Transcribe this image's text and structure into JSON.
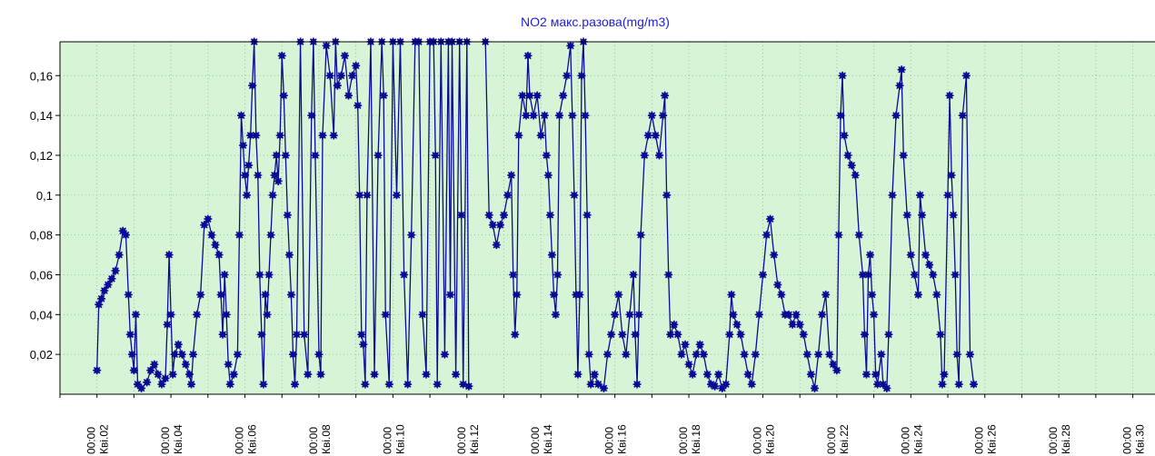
{
  "chart_data": {
    "type": "line",
    "title": "NO2 макс.разова(mg/m3)",
    "xlabel": "",
    "ylabel": "",
    "ylim": [
      0,
      0.177
    ],
    "xlim": [
      1,
      30.6
    ],
    "y_ticks": [
      "0,02",
      "0,04",
      "0,06",
      "0,08",
      "0,1",
      "0,12",
      "0,14",
      "0,16"
    ],
    "x_ticks": [
      {
        "time": "00:00",
        "date": "Кві.02"
      },
      {
        "time": "00:00",
        "date": "Кві.04"
      },
      {
        "time": "00:00",
        "date": "Кві.06"
      },
      {
        "time": "00:00",
        "date": "Кві.08"
      },
      {
        "time": "00:00",
        "date": "Кві.10"
      },
      {
        "time": "00:00",
        "date": "Кві.12"
      },
      {
        "time": "00:00",
        "date": "Кві.14"
      },
      {
        "time": "00:00",
        "date": "Кві.16"
      },
      {
        "time": "00:00",
        "date": "Кві.18"
      },
      {
        "time": "00:00",
        "date": "Кві.20"
      },
      {
        "time": "00:00",
        "date": "Кві.22"
      },
      {
        "time": "00:00",
        "date": "Кві.24"
      },
      {
        "time": "00:00",
        "date": "Кві.26"
      },
      {
        "time": "00:00",
        "date": "Кві.28"
      },
      {
        "time": "00:00",
        "date": "Кві.30"
      }
    ],
    "grid": true,
    "colors": {
      "line": "#0a0a96",
      "plot_background": "#d6f5d6",
      "title": "#2020d8"
    },
    "series": [
      {
        "name": "",
        "points": [
          [
            2.0,
            0.012
          ],
          [
            2.05,
            0.045
          ],
          [
            2.12,
            0.048
          ],
          [
            2.2,
            0.052
          ],
          [
            2.3,
            0.055
          ],
          [
            2.4,
            0.058
          ],
          [
            2.5,
            0.062
          ],
          [
            2.6,
            0.07
          ],
          [
            2.7,
            0.082
          ],
          [
            2.78,
            0.08
          ],
          [
            2.85,
            0.05
          ],
          [
            2.9,
            0.03
          ],
          [
            2.95,
            0.02
          ],
          [
            3.0,
            0.012
          ],
          [
            3.05,
            0.04
          ],
          [
            3.1,
            0.005
          ],
          [
            3.2,
            0.003
          ],
          [
            3.35,
            0.006
          ],
          [
            3.45,
            0.012
          ],
          [
            3.55,
            0.015
          ],
          [
            3.65,
            0.01
          ],
          [
            3.75,
            0.005
          ],
          [
            3.85,
            0.008
          ],
          [
            3.9,
            0.035
          ],
          [
            3.95,
            0.07
          ],
          [
            4.0,
            0.04
          ],
          [
            4.05,
            0.01
          ],
          [
            4.1,
            0.02
          ],
          [
            4.2,
            0.025
          ],
          [
            4.3,
            0.02
          ],
          [
            4.4,
            0.015
          ],
          [
            4.5,
            0.01
          ],
          [
            4.55,
            0.005
          ],
          [
            4.6,
            0.02
          ],
          [
            4.7,
            0.04
          ],
          [
            4.8,
            0.05
          ],
          [
            4.9,
            0.085
          ],
          [
            5.0,
            0.088
          ],
          [
            5.1,
            0.08
          ],
          [
            5.2,
            0.075
          ],
          [
            5.3,
            0.07
          ],
          [
            5.35,
            0.05
          ],
          [
            5.4,
            0.03
          ],
          [
            5.45,
            0.06
          ],
          [
            5.5,
            0.04
          ],
          [
            5.55,
            0.015
          ],
          [
            5.6,
            0.005
          ],
          [
            5.7,
            0.01
          ],
          [
            5.8,
            0.02
          ],
          [
            5.85,
            0.08
          ],
          [
            5.9,
            0.14
          ],
          [
            5.95,
            0.125
          ],
          [
            6.0,
            0.11
          ],
          [
            6.05,
            0.1
          ],
          [
            6.1,
            0.115
          ],
          [
            6.15,
            0.13
          ],
          [
            6.2,
            0.155
          ],
          [
            6.25,
            0.177
          ],
          [
            6.3,
            0.13
          ],
          [
            6.35,
            0.11
          ],
          [
            6.4,
            0.06
          ],
          [
            6.45,
            0.03
          ],
          [
            6.5,
            0.005
          ],
          [
            6.55,
            0.05
          ],
          [
            6.6,
            0.04
          ],
          [
            6.65,
            0.06
          ],
          [
            6.7,
            0.08
          ],
          [
            6.75,
            0.1
          ],
          [
            6.8,
            0.11
          ],
          [
            6.85,
            0.12
          ],
          [
            6.9,
            0.107
          ],
          [
            6.95,
            0.13
          ],
          [
            7.0,
            0.17
          ],
          [
            7.05,
            0.15
          ],
          [
            7.1,
            0.12
          ],
          [
            7.15,
            0.09
          ],
          [
            7.2,
            0.07
          ],
          [
            7.25,
            0.05
          ],
          [
            7.3,
            0.02
          ],
          [
            7.35,
            0.005
          ],
          [
            7.4,
            0.03
          ],
          [
            7.5,
            0.177
          ],
          [
            7.6,
            0.03
          ],
          [
            7.7,
            0.01
          ],
          [
            7.8,
            0.14
          ],
          [
            7.85,
            0.177
          ],
          [
            7.9,
            0.12
          ],
          [
            8.0,
            0.02
          ],
          [
            8.05,
            0.01
          ],
          [
            8.1,
            0.13
          ],
          [
            8.2,
            0.175
          ],
          [
            8.3,
            0.16
          ],
          [
            8.4,
            0.13
          ],
          [
            8.45,
            0.177
          ],
          [
            8.5,
            0.155
          ],
          [
            8.6,
            0.16
          ],
          [
            8.7,
            0.17
          ],
          [
            8.8,
            0.15
          ],
          [
            8.9,
            0.16
          ],
          [
            9.0,
            0.165
          ],
          [
            9.05,
            0.145
          ],
          [
            9.1,
            0.1
          ],
          [
            9.15,
            0.03
          ],
          [
            9.2,
            0.025
          ],
          [
            9.25,
            0.005
          ],
          [
            9.3,
            0.1
          ],
          [
            9.4,
            0.177
          ],
          [
            9.5,
            0.01
          ],
          [
            9.6,
            0.12
          ],
          [
            9.7,
            0.177
          ],
          [
            9.75,
            0.15
          ],
          [
            9.8,
            0.04
          ],
          [
            9.9,
            0.005
          ],
          [
            10.0,
            0.177
          ],
          [
            10.1,
            0.1
          ],
          [
            10.2,
            0.177
          ],
          [
            10.3,
            0.06
          ],
          [
            10.4,
            0.005
          ],
          [
            10.5,
            0.08
          ],
          [
            10.6,
            0.177
          ],
          [
            10.7,
            0.177
          ],
          [
            10.8,
            0.04
          ],
          [
            10.9,
            0.01
          ],
          [
            11.0,
            0.177
          ],
          [
            11.1,
            0.177
          ],
          [
            11.15,
            0.12
          ],
          [
            11.2,
            0.005
          ],
          [
            11.3,
            0.177
          ],
          [
            11.4,
            0.02
          ],
          [
            11.5,
            0.177
          ],
          [
            11.55,
            0.05
          ],
          [
            11.6,
            0.177
          ],
          [
            11.7,
            0.01
          ],
          [
            11.8,
            0.177
          ],
          [
            11.85,
            0.09
          ],
          [
            11.9,
            0.005
          ],
          [
            12.0,
            0.177
          ],
          [
            12.05,
            0.004
          ],
          [
            12.5,
            0.18
          ],
          [
            12.6,
            0.09
          ],
          [
            12.7,
            0.085
          ],
          [
            12.8,
            0.075
          ],
          [
            12.9,
            0.085
          ],
          [
            13.0,
            0.09
          ],
          [
            13.1,
            0.1
          ],
          [
            13.2,
            0.11
          ],
          [
            13.25,
            0.06
          ],
          [
            13.3,
            0.03
          ],
          [
            13.35,
            0.05
          ],
          [
            13.4,
            0.13
          ],
          [
            13.5,
            0.15
          ],
          [
            13.6,
            0.14
          ],
          [
            13.65,
            0.17
          ],
          [
            13.7,
            0.15
          ],
          [
            13.8,
            0.14
          ],
          [
            13.9,
            0.15
          ],
          [
            14.0,
            0.13
          ],
          [
            14.1,
            0.14
          ],
          [
            14.15,
            0.12
          ],
          [
            14.2,
            0.11
          ],
          [
            14.25,
            0.09
          ],
          [
            14.3,
            0.07
          ],
          [
            14.35,
            0.05
          ],
          [
            14.4,
            0.04
          ],
          [
            14.45,
            0.06
          ],
          [
            14.5,
            0.14
          ],
          [
            14.6,
            0.15
          ],
          [
            14.7,
            0.16
          ],
          [
            14.8,
            0.175
          ],
          [
            14.85,
            0.14
          ],
          [
            14.9,
            0.1
          ],
          [
            14.95,
            0.05
          ],
          [
            15.0,
            0.01
          ],
          [
            15.05,
            0.05
          ],
          [
            15.1,
            0.16
          ],
          [
            15.15,
            0.177
          ],
          [
            15.2,
            0.14
          ],
          [
            15.25,
            0.09
          ],
          [
            15.3,
            0.02
          ],
          [
            15.35,
            0.005
          ],
          [
            15.45,
            0.01
          ],
          [
            15.55,
            0.005
          ],
          [
            15.7,
            0.003
          ],
          [
            15.8,
            0.02
          ],
          [
            15.9,
            0.03
          ],
          [
            16.0,
            0.04
          ],
          [
            16.1,
            0.05
          ],
          [
            16.2,
            0.03
          ],
          [
            16.3,
            0.02
          ],
          [
            16.4,
            0.04
          ],
          [
            16.5,
            0.06
          ],
          [
            16.55,
            0.03
          ],
          [
            16.6,
            0.005
          ],
          [
            16.65,
            0.04
          ],
          [
            16.7,
            0.08
          ],
          [
            16.8,
            0.12
          ],
          [
            16.9,
            0.13
          ],
          [
            17.0,
            0.14
          ],
          [
            17.1,
            0.13
          ],
          [
            17.2,
            0.12
          ],
          [
            17.3,
            0.14
          ],
          [
            17.35,
            0.15
          ],
          [
            17.4,
            0.1
          ],
          [
            17.45,
            0.06
          ],
          [
            17.5,
            0.03
          ],
          [
            17.6,
            0.035
          ],
          [
            17.7,
            0.03
          ],
          [
            17.8,
            0.02
          ],
          [
            17.9,
            0.025
          ],
          [
            18.0,
            0.015
          ],
          [
            18.1,
            0.01
          ],
          [
            18.2,
            0.02
          ],
          [
            18.3,
            0.025
          ],
          [
            18.4,
            0.02
          ],
          [
            18.5,
            0.01
          ],
          [
            18.6,
            0.005
          ],
          [
            18.7,
            0.004
          ],
          [
            18.8,
            0.01
          ],
          [
            18.9,
            0.003
          ],
          [
            19.0,
            0.005
          ],
          [
            19.1,
            0.03
          ],
          [
            19.15,
            0.05
          ],
          [
            19.2,
            0.04
          ],
          [
            19.3,
            0.035
          ],
          [
            19.4,
            0.03
          ],
          [
            19.5,
            0.02
          ],
          [
            19.6,
            0.01
          ],
          [
            19.7,
            0.005
          ],
          [
            19.8,
            0.02
          ],
          [
            19.9,
            0.04
          ],
          [
            20.0,
            0.06
          ],
          [
            20.1,
            0.08
          ],
          [
            20.2,
            0.088
          ],
          [
            20.3,
            0.07
          ],
          [
            20.4,
            0.055
          ],
          [
            20.5,
            0.05
          ],
          [
            20.6,
            0.04
          ],
          [
            20.7,
            0.04
          ],
          [
            20.8,
            0.035
          ],
          [
            20.9,
            0.04
          ],
          [
            21.0,
            0.035
          ],
          [
            21.1,
            0.03
          ],
          [
            21.2,
            0.02
          ],
          [
            21.3,
            0.01
          ],
          [
            21.4,
            0.003
          ],
          [
            21.5,
            0.02
          ],
          [
            21.6,
            0.04
          ],
          [
            21.7,
            0.05
          ],
          [
            21.8,
            0.02
          ],
          [
            21.9,
            0.015
          ],
          [
            22.0,
            0.012
          ],
          [
            22.05,
            0.08
          ],
          [
            22.1,
            0.14
          ],
          [
            22.15,
            0.16
          ],
          [
            22.2,
            0.13
          ],
          [
            22.3,
            0.12
          ],
          [
            22.4,
            0.115
          ],
          [
            22.5,
            0.11
          ],
          [
            22.6,
            0.08
          ],
          [
            22.7,
            0.06
          ],
          [
            22.75,
            0.03
          ],
          [
            22.8,
            0.01
          ],
          [
            22.85,
            0.06
          ],
          [
            22.9,
            0.07
          ],
          [
            22.95,
            0.05
          ],
          [
            23.0,
            0.04
          ],
          [
            23.05,
            0.01
          ],
          [
            23.1,
            0.005
          ],
          [
            23.2,
            0.02
          ],
          [
            23.25,
            0.005
          ],
          [
            23.35,
            0.003
          ],
          [
            23.4,
            0.03
          ],
          [
            23.5,
            0.1
          ],
          [
            23.6,
            0.14
          ],
          [
            23.7,
            0.155
          ],
          [
            23.75,
            0.163
          ],
          [
            23.8,
            0.12
          ],
          [
            23.9,
            0.09
          ],
          [
            24.0,
            0.07
          ],
          [
            24.1,
            0.06
          ],
          [
            24.2,
            0.05
          ],
          [
            24.25,
            0.1
          ],
          [
            24.3,
            0.09
          ],
          [
            24.4,
            0.07
          ],
          [
            24.5,
            0.065
          ],
          [
            24.6,
            0.06
          ],
          [
            24.7,
            0.05
          ],
          [
            24.8,
            0.03
          ],
          [
            24.85,
            0.005
          ],
          [
            24.9,
            0.01
          ],
          [
            25.0,
            0.1
          ],
          [
            25.05,
            0.15
          ],
          [
            25.1,
            0.11
          ],
          [
            25.15,
            0.09
          ],
          [
            25.2,
            0.06
          ],
          [
            25.25,
            0.02
          ],
          [
            25.3,
            0.005
          ],
          [
            25.4,
            0.14
          ],
          [
            25.5,
            0.16
          ],
          [
            25.6,
            0.02
          ],
          [
            25.7,
            0.005
          ]
        ]
      }
    ]
  }
}
